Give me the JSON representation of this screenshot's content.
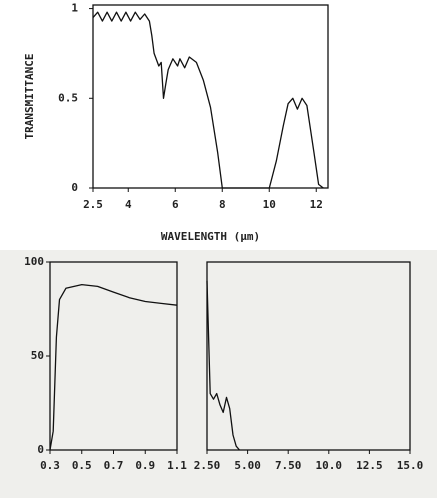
{
  "chart_data": [
    {
      "type": "line",
      "y_label": "TRANSMITTANCE",
      "x_label": "WAVELENGTH (μm)",
      "x": [
        2.5,
        2.7,
        2.9,
        3.1,
        3.3,
        3.5,
        3.7,
        3.9,
        4.1,
        4.3,
        4.5,
        4.7,
        4.9,
        5.0,
        5.1,
        5.3,
        5.4,
        5.5,
        5.6,
        5.7,
        5.9,
        6.1,
        6.2,
        6.4,
        6.6,
        6.9,
        7.2,
        7.5,
        7.8,
        8.0,
        10.0,
        10.3,
        10.6,
        10.8,
        11.0,
        11.2,
        11.4,
        11.6,
        11.9,
        12.1,
        12.3
      ],
      "series": [
        {
          "color": "#111111",
          "values": [
            0.95,
            0.98,
            0.93,
            0.98,
            0.93,
            0.98,
            0.93,
            0.98,
            0.93,
            0.98,
            0.94,
            0.97,
            0.93,
            0.85,
            0.75,
            0.68,
            0.7,
            0.5,
            0.58,
            0.66,
            0.72,
            0.68,
            0.72,
            0.67,
            0.73,
            0.7,
            0.6,
            0.45,
            0.2,
            0.0,
            0.0,
            0.15,
            0.35,
            0.47,
            0.5,
            0.44,
            0.5,
            0.46,
            0.2,
            0.02,
            0.0
          ]
        }
      ],
      "xlim": [
        2.5,
        12.5
      ],
      "xticks": [
        2.5,
        4,
        6,
        8,
        10,
        12
      ],
      "ylim": [
        0,
        1.02
      ],
      "yticks": [
        0,
        0.5,
        1
      ]
    },
    {
      "type": "line",
      "x": [
        0.3,
        0.32,
        0.34,
        0.36,
        0.4,
        0.5,
        0.6,
        0.7,
        0.8,
        0.9,
        1.0,
        1.1
      ],
      "series": [
        {
          "color": "#111111",
          "values": [
            0,
            10,
            60,
            80,
            86,
            88,
            87,
            84,
            81,
            79,
            78,
            77
          ]
        }
      ],
      "xlim": [
        0.3,
        1.1
      ],
      "xticks": [
        0.3,
        0.5,
        0.7,
        0.9,
        1.1
      ],
      "ylim": [
        0,
        100
      ],
      "yticks": [
        0,
        50,
        100
      ]
    },
    {
      "type": "line",
      "x": [
        2.5,
        2.6,
        2.7,
        2.9,
        3.1,
        3.3,
        3.5,
        3.7,
        3.9,
        4.1,
        4.3,
        4.5
      ],
      "series": [
        {
          "color": "#111111",
          "values": [
            90,
            60,
            30,
            27,
            30,
            24,
            20,
            28,
            22,
            8,
            2,
            0
          ]
        }
      ],
      "xlim": [
        2.5,
        15
      ],
      "xticks": [
        {
          "value": 2.5,
          "label": "2.50"
        },
        {
          "value": 5,
          "label": "5.00"
        },
        {
          "value": 7.5,
          "label": "7.50"
        },
        {
          "value": 10,
          "label": "10.0"
        },
        {
          "value": 12.5,
          "label": "12.5"
        },
        {
          "value": 15,
          "label": "15.0"
        }
      ],
      "ylim": [
        0,
        100
      ]
    }
  ]
}
